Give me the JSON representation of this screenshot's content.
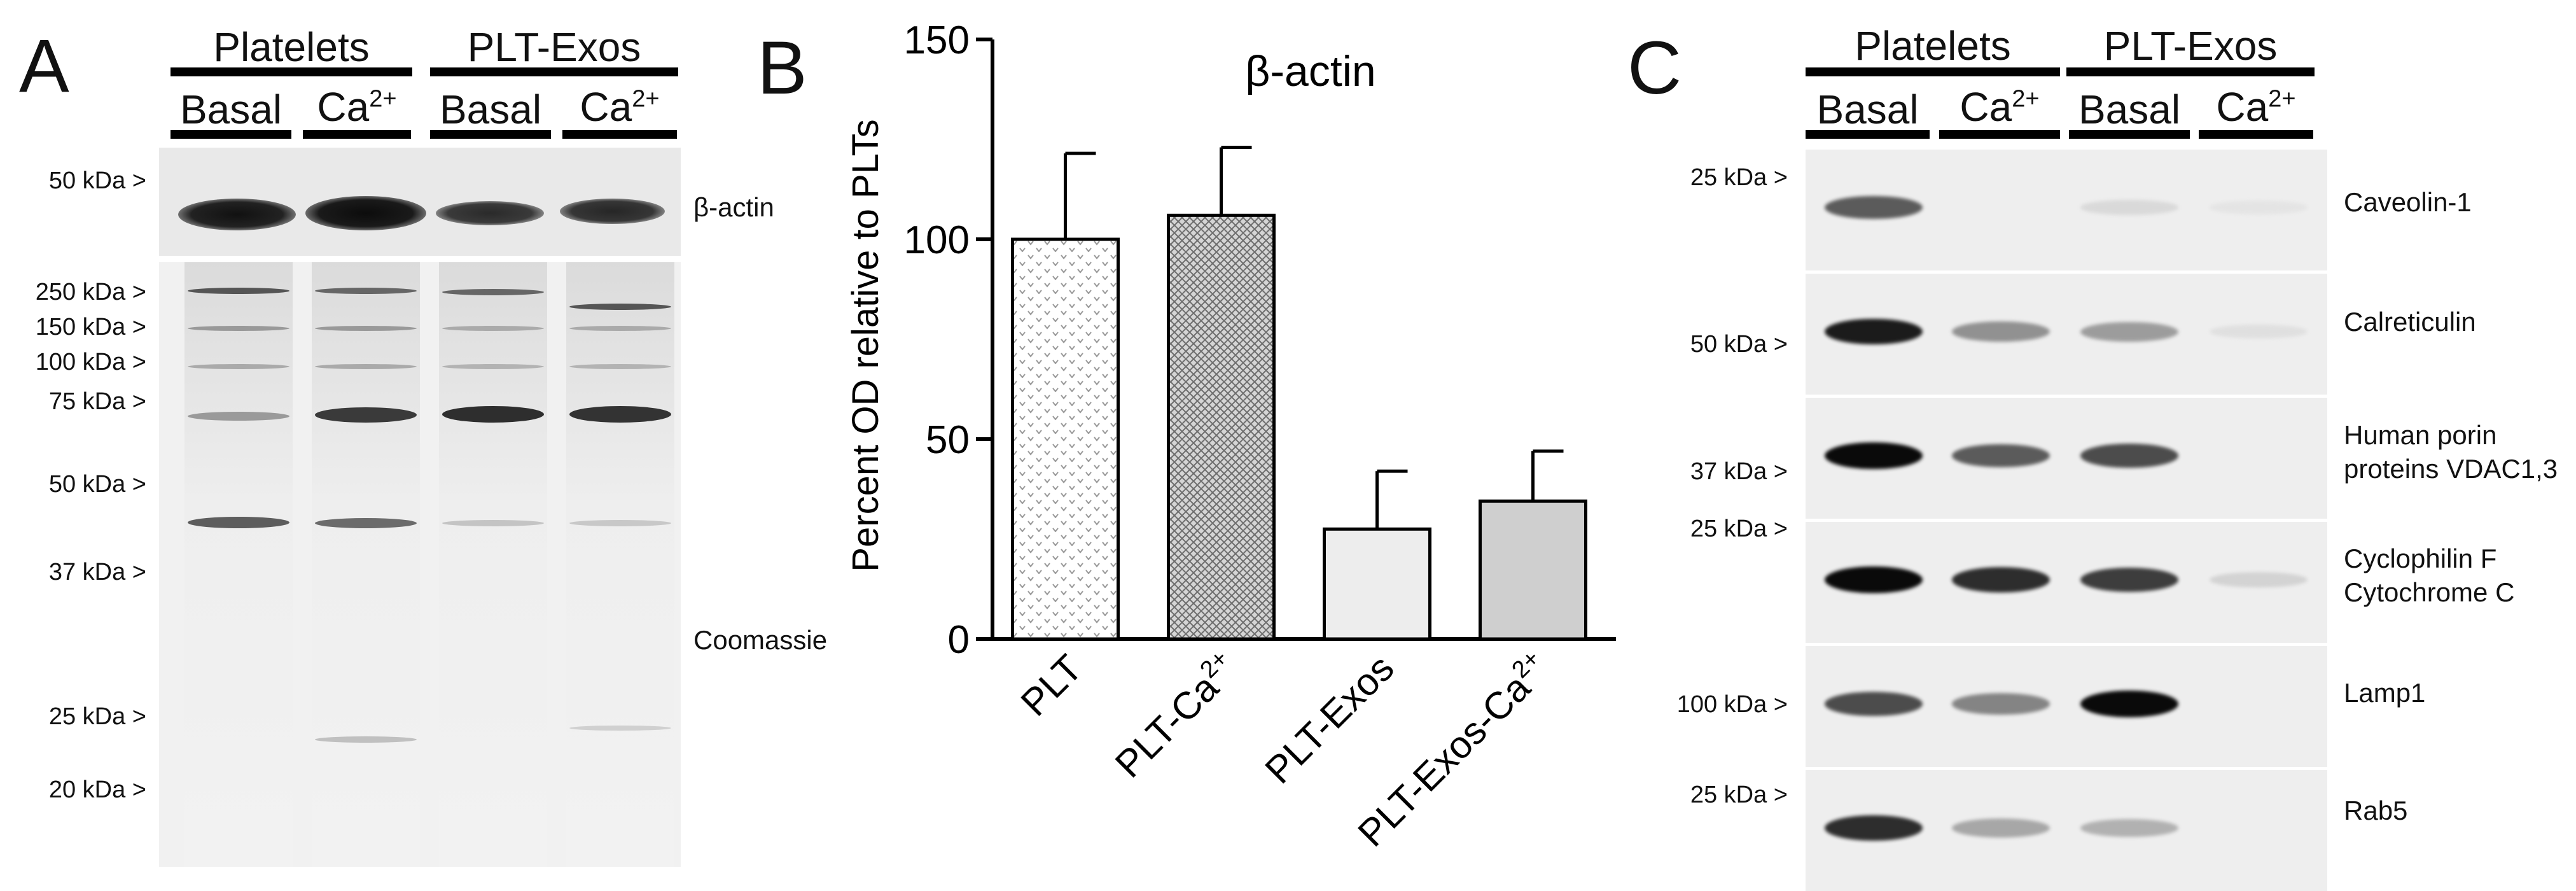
{
  "panels": {
    "A": {
      "letter": "A",
      "groups": [
        "Platelets",
        "PLT-Exos"
      ],
      "lanes": [
        {
          "main": "Basal",
          "sup": ""
        },
        {
          "main": "Ca",
          "sup": "2+"
        },
        {
          "main": "Basal",
          "sup": ""
        },
        {
          "main": "Ca",
          "sup": "2+"
        }
      ],
      "top_blot": {
        "label": "β-actin",
        "marker": "50 kDa >"
      },
      "gel": {
        "label": "Coomassie",
        "markers": [
          "250 kDa >",
          "150 kDa >",
          "100 kDa >",
          "75 kDa >",
          "50 kDa >",
          "37 kDa >",
          "25 kDa >",
          "20 kDa >"
        ]
      }
    },
    "B": {
      "letter": "B"
    },
    "C": {
      "letter": "C",
      "groups": [
        "Platelets",
        "PLT-Exos"
      ],
      "lanes": [
        {
          "main": "Basal",
          "sup": ""
        },
        {
          "main": "Ca",
          "sup": "2+"
        },
        {
          "main": "Basal",
          "sup": ""
        },
        {
          "main": "Ca",
          "sup": "2+"
        }
      ],
      "strips": [
        {
          "marker": "25 kDa >",
          "protein_lines": [
            "Caveolin-1"
          ],
          "intensity": [
            0.75,
            0.0,
            0.15,
            0.05
          ]
        },
        {
          "marker": "50 kDa >",
          "protein_lines": [
            "Calreticulin"
          ],
          "intensity": [
            0.95,
            0.55,
            0.5,
            0.1
          ]
        },
        {
          "marker": "37 kDa >",
          "protein_lines": [
            "Human porin",
            "proteins VDAC1,3"
          ],
          "intensity": [
            1.0,
            0.75,
            0.8,
            0.0
          ]
        },
        {
          "marker": "25 kDa >",
          "protein_lines": [
            "Cyclophilin F",
            "Cytochrome C"
          ],
          "intensity": [
            1.0,
            0.9,
            0.85,
            0.2
          ]
        },
        {
          "marker": "100 kDa >",
          "protein_lines": [
            "Lamp1"
          ],
          "intensity": [
            0.8,
            0.6,
            1.0,
            0.0
          ]
        },
        {
          "marker": "25 kDa >",
          "protein_lines": [
            "Rab5"
          ],
          "intensity": [
            0.9,
            0.45,
            0.4,
            0.0
          ]
        }
      ]
    }
  },
  "chart_data": {
    "type": "bar",
    "title": "β-actin",
    "xlabel": "",
    "ylabel": "Percent OD relative to  PLTs",
    "ylim": [
      0,
      150
    ],
    "yticks": [
      0,
      50,
      100,
      150
    ],
    "categories": [
      "PLT",
      "PLT-Ca2+",
      "PLT-Exos",
      "PLT-Exos-Ca2+"
    ],
    "category_labels": [
      {
        "main": "PLT",
        "sup": ""
      },
      {
        "main": "PLT-Ca",
        "sup": "2+"
      },
      {
        "main": "PLT-Exos",
        "sup": ""
      },
      {
        "main": "PLT-Exos-Ca",
        "sup": "2+"
      }
    ],
    "values": [
      100,
      106,
      27.5,
      34.5
    ],
    "errors": [
      21.5,
      17,
      14.5,
      12.5
    ],
    "fills": [
      "dotted",
      "crosshatch",
      "#ededed",
      "#cfcfcf"
    ]
  }
}
